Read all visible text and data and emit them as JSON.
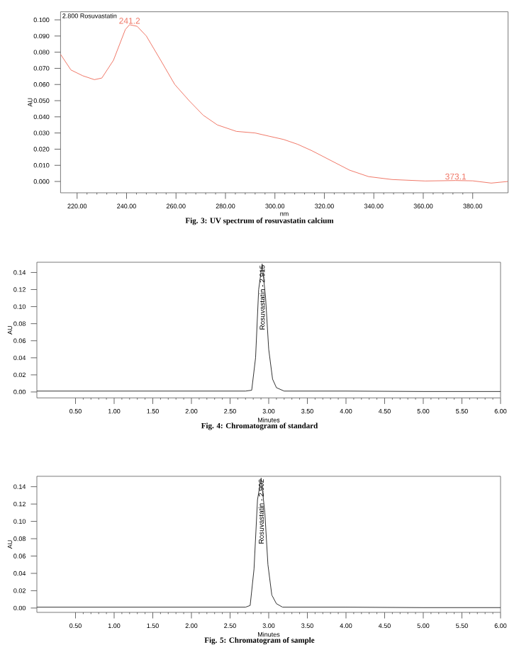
{
  "chart_data": [
    {
      "type": "line",
      "title": "Fig. 3: UV spectrum of rosuvastatin calcium",
      "subtitle": "2.800 Rosuvastatin",
      "xlabel": "nm",
      "ylabel": "AU",
      "x": [
        213.3,
        217.5,
        222.3,
        227,
        230,
        234.7,
        239.5,
        241.2,
        244.3,
        248,
        253.8,
        259.5,
        265.3,
        271,
        276.7,
        284.4,
        292,
        297.7,
        303.5,
        309.2,
        315,
        322.6,
        330.2,
        337.9,
        347.4,
        360.8,
        373.1,
        380,
        387.5,
        394.2
      ],
      "series": [
        {
          "color": "#f07868",
          "values": [
            0.0787,
            0.069,
            0.0654,
            0.063,
            0.064,
            0.075,
            0.094,
            0.097,
            0.096,
            0.09,
            0.075,
            0.06,
            0.05,
            0.041,
            0.035,
            0.031,
            0.03,
            0.028,
            0.026,
            0.023,
            0.019,
            0.013,
            0.007,
            0.003,
            0.0012,
            0.0003,
            0.0006,
            0.0004,
            -0.001,
            0.0
          ]
        }
      ],
      "annotations": [
        {
          "text": "241.2",
          "x": 241.2,
          "y": 0.097
        },
        {
          "text": "373.1",
          "x": 373.1,
          "y": 0.0006
        }
      ],
      "xlim": [
        213.3,
        394.3
      ],
      "ylim": [
        -0.007,
        0.105
      ],
      "xticks": [
        {
          "value": 220,
          "label": "220.00"
        },
        {
          "value": 240,
          "label": "240.00"
        },
        {
          "value": 260,
          "label": "260.00"
        },
        {
          "value": 280,
          "label": "280.00"
        },
        {
          "value": 300,
          "label": "300.00"
        },
        {
          "value": 320,
          "label": "320.00"
        },
        {
          "value": 340,
          "label": "340.00"
        },
        {
          "value": 360,
          "label": "360.00"
        },
        {
          "value": 380,
          "label": "380.00"
        }
      ],
      "yticks": [
        {
          "value": 0,
          "label": "0.000"
        },
        {
          "value": 0.01,
          "label": "0.010"
        },
        {
          "value": 0.02,
          "label": "0.020"
        },
        {
          "value": 0.03,
          "label": "0.030"
        },
        {
          "value": 0.04,
          "label": "0.040"
        },
        {
          "value": 0.05,
          "label": "0.050"
        },
        {
          "value": 0.06,
          "label": "0.060"
        },
        {
          "value": 0.07,
          "label": "0.070"
        },
        {
          "value": 0.08,
          "label": "0.080"
        },
        {
          "value": 0.09,
          "label": "0.090"
        },
        {
          "value": 0.1,
          "label": "0.100"
        }
      ]
    },
    {
      "type": "line",
      "title": "Fig. 4: Chromatogram of standard",
      "xlabel": "Minutes",
      "ylabel": "AU",
      "x": [
        0,
        1,
        2,
        2.7,
        2.78,
        2.83,
        2.87,
        2.915,
        2.96,
        3.0,
        3.05,
        3.1,
        3.2,
        4,
        5,
        6
      ],
      "series": [
        {
          "color": "#333333",
          "values": [
            0.001,
            0.001,
            0.001,
            0.001,
            0.002,
            0.04,
            0.12,
            0.15,
            0.11,
            0.05,
            0.015,
            0.005,
            0.001,
            0.001,
            0.0005,
            0.0005
          ]
        }
      ],
      "annotations": [
        {
          "text": "Rosuvastatin - 2.915",
          "x": 2.915,
          "y": 0.15
        }
      ],
      "xlim": [
        0,
        6.0
      ],
      "ylim": [
        -0.007,
        0.152
      ],
      "xticks": [
        {
          "value": 0.5,
          "label": "0.50"
        },
        {
          "value": 1,
          "label": "1.00"
        },
        {
          "value": 1.5,
          "label": "1.50"
        },
        {
          "value": 2,
          "label": "2.00"
        },
        {
          "value": 2.5,
          "label": "2.50"
        },
        {
          "value": 3,
          "label": "3.00"
        },
        {
          "value": 3.5,
          "label": "3.50"
        },
        {
          "value": 4,
          "label": "4.00"
        },
        {
          "value": 4.5,
          "label": "4.50"
        },
        {
          "value": 5,
          "label": "5.00"
        },
        {
          "value": 5.5,
          "label": "5.50"
        },
        {
          "value": 6,
          "label": "6.00"
        }
      ],
      "yticks": [
        {
          "value": 0,
          "label": "0.00"
        },
        {
          "value": 0.02,
          "label": "0.02"
        },
        {
          "value": 0.04,
          "label": "0.04"
        },
        {
          "value": 0.06,
          "label": "0.06"
        },
        {
          "value": 0.08,
          "label": "0.08"
        },
        {
          "value": 0.1,
          "label": "0.10"
        },
        {
          "value": 0.12,
          "label": "0.12"
        },
        {
          "value": 0.14,
          "label": "0.14"
        }
      ]
    },
    {
      "type": "line",
      "title": "Fig. 5: Chromatogram of sample",
      "xlabel": "Minutes",
      "ylabel": "AU",
      "x": [
        0,
        1,
        2,
        2.7,
        2.76,
        2.81,
        2.855,
        2.902,
        2.95,
        2.99,
        3.04,
        3.1,
        3.18,
        4,
        5,
        6
      ],
      "series": [
        {
          "color": "#333333",
          "values": [
            0.001,
            0.001,
            0.001,
            0.001,
            0.003,
            0.045,
            0.125,
            0.15,
            0.11,
            0.05,
            0.015,
            0.005,
            0.001,
            0.001,
            0.0005,
            0.0005
          ]
        }
      ],
      "annotations": [
        {
          "text": "Rosuvastatin - 2.902",
          "x": 2.902,
          "y": 0.15
        }
      ],
      "xlim": [
        0,
        6.0
      ],
      "ylim": [
        -0.005,
        0.152
      ],
      "xticks": [
        {
          "value": 0.5,
          "label": "0.50"
        },
        {
          "value": 1,
          "label": "1.00"
        },
        {
          "value": 1.5,
          "label": "1.50"
        },
        {
          "value": 2,
          "label": "2.00"
        },
        {
          "value": 2.5,
          "label": "2.50"
        },
        {
          "value": 3,
          "label": "3.00"
        },
        {
          "value": 3.5,
          "label": "3.50"
        },
        {
          "value": 4,
          "label": "4.00"
        },
        {
          "value": 4.5,
          "label": "4.50"
        },
        {
          "value": 5,
          "label": "5.00"
        },
        {
          "value": 5.5,
          "label": "5.50"
        },
        {
          "value": 6,
          "label": "6.00"
        }
      ],
      "yticks": [
        {
          "value": 0,
          "label": "0.00"
        },
        {
          "value": 0.02,
          "label": "0.02"
        },
        {
          "value": 0.04,
          "label": "0.04"
        },
        {
          "value": 0.06,
          "label": "0.06"
        },
        {
          "value": 0.08,
          "label": "0.08"
        },
        {
          "value": 0.1,
          "label": "0.10"
        },
        {
          "value": 0.12,
          "label": "0.12"
        },
        {
          "value": 0.14,
          "label": "0.14"
        }
      ]
    }
  ]
}
